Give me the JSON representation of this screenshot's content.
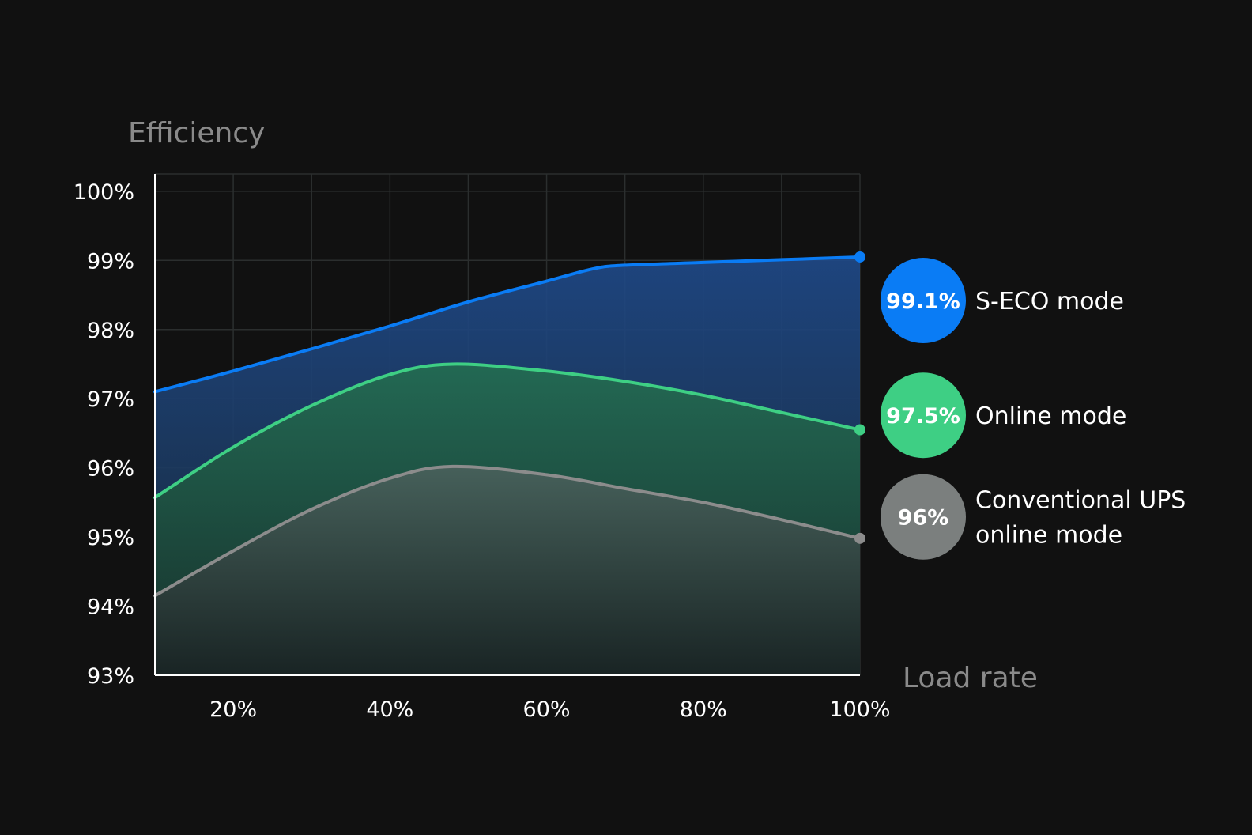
{
  "chart_data": {
    "type": "area",
    "ylabel": "Efficiency",
    "xlabel": "Load rate",
    "x_tick_labels": [
      "20%",
      "40%",
      "60%",
      "80%",
      "100%"
    ],
    "y_tick_labels": [
      "93%",
      "94%",
      "95%",
      "96%",
      "97%",
      "98%",
      "99%",
      "100%"
    ],
    "xlim": [
      10,
      100
    ],
    "ylim": [
      93,
      100.25
    ],
    "grid": true,
    "series": [
      {
        "name": "S-ECO mode",
        "end_label": "99.1%",
        "color": "#0a7cf5",
        "points": [
          [
            10,
            97.1
          ],
          [
            20,
            97.4
          ],
          [
            30,
            97.72
          ],
          [
            40,
            98.05
          ],
          [
            50,
            98.4
          ],
          [
            60,
            98.7
          ],
          [
            66,
            98.88
          ],
          [
            70,
            98.93
          ],
          [
            80,
            98.97
          ],
          [
            90,
            99.01
          ],
          [
            100,
            99.05
          ]
        ]
      },
      {
        "name": "Online mode",
        "end_label": "97.5%",
        "color": "#3ecf84",
        "points": [
          [
            10,
            95.57
          ],
          [
            20,
            96.3
          ],
          [
            30,
            96.9
          ],
          [
            40,
            97.35
          ],
          [
            48,
            97.5
          ],
          [
            60,
            97.4
          ],
          [
            70,
            97.25
          ],
          [
            80,
            97.05
          ],
          [
            90,
            96.8
          ],
          [
            100,
            96.55
          ]
        ]
      },
      {
        "name": "Conventional UPS online mode",
        "name_lines": [
          "Conventional UPS",
          "online mode"
        ],
        "end_label": "96%",
        "color": "#8c8c8c",
        "points": [
          [
            10,
            94.15
          ],
          [
            20,
            94.8
          ],
          [
            30,
            95.4
          ],
          [
            40,
            95.85
          ],
          [
            48,
            96.02
          ],
          [
            60,
            95.9
          ],
          [
            70,
            95.7
          ],
          [
            80,
            95.5
          ],
          [
            90,
            95.25
          ],
          [
            100,
            94.98
          ]
        ]
      }
    ]
  }
}
